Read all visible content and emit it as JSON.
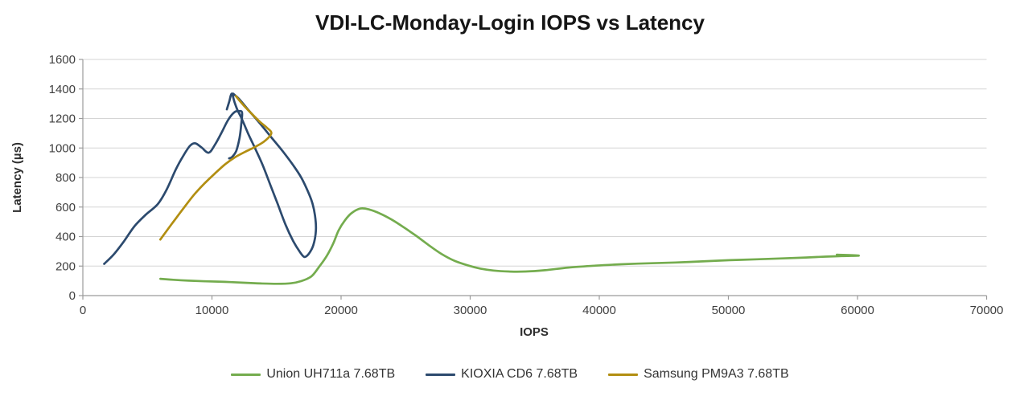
{
  "page": {
    "background": "#FFFFFF"
  },
  "styles": {
    "gridline_color": "#D5D5D5",
    "axis_line_color": "#9B9B9B",
    "tick_color": "#9B9B9B",
    "text_color": "#3F3F3F",
    "title_color": "#151515"
  },
  "chart_data": {
    "type": "line",
    "title": "VDI-LC-Monday-Login IOPS vs Latency",
    "xlabel": "IOPS",
    "ylabel": "Latency (µs)",
    "xlim": [
      0,
      70000
    ],
    "ylim": [
      0,
      1600
    ],
    "x_ticks": [
      0,
      10000,
      20000,
      30000,
      40000,
      50000,
      60000,
      70000
    ],
    "y_ticks": [
      0,
      200,
      400,
      600,
      800,
      1000,
      1200,
      1400,
      1600
    ],
    "grid": "horizontal",
    "legend_position": "bottom",
    "series": [
      {
        "name": "Union UH711a 7.68TB",
        "color": "#74AC4E",
        "segments": [
          [
            [
              6000,
              114
            ],
            [
              7000,
              107
            ],
            [
              8200,
              101
            ],
            [
              9500,
              97
            ],
            [
              11000,
              93
            ],
            [
              12500,
              87
            ],
            [
              13800,
              82
            ],
            [
              15000,
              80
            ],
            [
              16100,
              83
            ],
            [
              16900,
              98
            ],
            [
              17700,
              130
            ],
            [
              18300,
              195
            ],
            [
              18900,
              270
            ],
            [
              19400,
              355
            ],
            [
              19800,
              440
            ],
            [
              20300,
              510
            ],
            [
              20800,
              558
            ],
            [
              21500,
              590
            ],
            [
              22200,
              583
            ],
            [
              23000,
              557
            ],
            [
              23900,
              516
            ],
            [
              24800,
              466
            ],
            [
              25800,
              406
            ],
            [
              26800,
              341
            ],
            [
              27800,
              281
            ],
            [
              28800,
              235
            ],
            [
              29800,
              205
            ],
            [
              30800,
              183
            ],
            [
              31800,
              170
            ],
            [
              33000,
              163
            ],
            [
              34300,
              163
            ],
            [
              35800,
              172
            ],
            [
              37600,
              190
            ],
            [
              39700,
              203
            ],
            [
              41700,
              212
            ],
            [
              43800,
              219
            ],
            [
              45900,
              224
            ],
            [
              48000,
              232
            ],
            [
              50100,
              240
            ],
            [
              52200,
              246
            ],
            [
              54200,
              252
            ],
            [
              56000,
              258
            ],
            [
              57500,
              264
            ],
            [
              58800,
              268
            ],
            [
              60100,
              271
            ],
            [
              58400,
              277
            ]
          ]
        ]
      },
      {
        "name": "KIOXIA CD6 7.68TB",
        "color": "#2C4A6E",
        "segments": [
          [
            [
              1650,
              215
            ],
            [
              2400,
              280
            ],
            [
              3200,
              370
            ],
            [
              4000,
              470
            ],
            [
              4900,
              550
            ],
            [
              5800,
              620
            ],
            [
              6500,
              720
            ],
            [
              7200,
              855
            ],
            [
              7800,
              950
            ],
            [
              8300,
              1015
            ],
            [
              8700,
              1032
            ],
            [
              9200,
              1003
            ],
            [
              9750,
              968
            ],
            [
              10250,
              1025
            ],
            [
              10750,
              1105
            ],
            [
              11250,
              1190
            ],
            [
              11750,
              1243
            ],
            [
              12100,
              1250
            ],
            [
              12330,
              1240
            ],
            [
              12270,
              1160
            ],
            [
              12130,
              1065
            ],
            [
              11880,
              980
            ],
            [
              11550,
              938
            ],
            [
              11330,
              930
            ]
          ],
          [
            [
              11150,
              1262
            ],
            [
              11340,
              1315
            ],
            [
              11530,
              1368
            ],
            [
              11750,
              1310
            ],
            [
              12000,
              1252
            ],
            [
              12300,
              1200
            ],
            [
              12800,
              1098
            ],
            [
              13300,
              1005
            ],
            [
              13900,
              890
            ],
            [
              14500,
              755
            ],
            [
              15100,
              618
            ],
            [
              15700,
              480
            ],
            [
              16300,
              368
            ],
            [
              16800,
              297
            ],
            [
              17150,
              262
            ],
            [
              17500,
              283
            ],
            [
              17850,
              342
            ],
            [
              18050,
              442
            ],
            [
              17980,
              542
            ],
            [
              17760,
              632
            ],
            [
              17400,
              712
            ],
            [
              16900,
              802
            ],
            [
              16300,
              882
            ],
            [
              15500,
              976
            ],
            [
              14600,
              1072
            ],
            [
              13700,
              1168
            ],
            [
              12800,
              1260
            ],
            [
              12100,
              1332
            ],
            [
              11640,
              1368
            ]
          ]
        ]
      },
      {
        "name": "Samsung PM9A3 7.68TB",
        "color": "#B28E11",
        "segments": [
          [
            [
              6000,
              380
            ],
            [
              6900,
              487
            ],
            [
              7800,
              592
            ],
            [
              8600,
              682
            ],
            [
              9400,
              758
            ],
            [
              10200,
              825
            ],
            [
              11000,
              888
            ],
            [
              11800,
              938
            ],
            [
              12600,
              975
            ],
            [
              13400,
              1010
            ],
            [
              14100,
              1048
            ],
            [
              14600,
              1100
            ],
            [
              14250,
              1138
            ],
            [
              13700,
              1178
            ],
            [
              13100,
              1230
            ],
            [
              12500,
              1285
            ],
            [
              12050,
              1330
            ],
            [
              11850,
              1352
            ]
          ]
        ]
      }
    ]
  }
}
